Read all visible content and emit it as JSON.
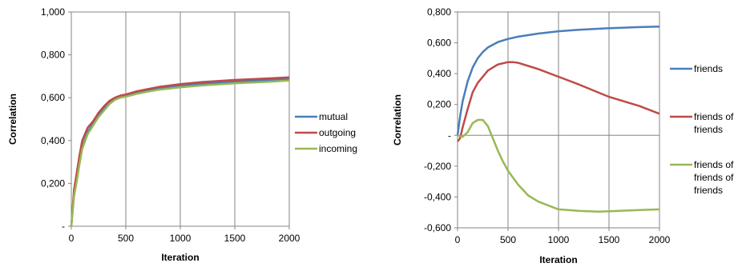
{
  "chart_data": [
    {
      "type": "line",
      "title": "",
      "xlabel": "Iteration",
      "ylabel": "Correlation",
      "xlim": [
        0,
        2000
      ],
      "ylim": [
        0,
        1.0
      ],
      "x_ticks": [
        0,
        500,
        1000,
        1500,
        2000
      ],
      "x_tick_labels": [
        "0",
        "500",
        "1000",
        "1500",
        "2000"
      ],
      "y_ticks": [
        0,
        0.2,
        0.4,
        0.6,
        0.8,
        1.0
      ],
      "y_tick_labels": [
        "-",
        "0,200",
        "0,400",
        "0,600",
        "0,800",
        "1,000"
      ],
      "grid": "vertical",
      "legend": "right",
      "series": [
        {
          "name": "mutual",
          "color": "#4a7ebb",
          "x": [
            0,
            25,
            50,
            75,
            100,
            150,
            200,
            250,
            300,
            350,
            400,
            450,
            500,
            600,
            700,
            800,
            1000,
            1200,
            1500,
            1800,
            2000
          ],
          "y": [
            0.0,
            0.15,
            0.22,
            0.3,
            0.37,
            0.44,
            0.48,
            0.52,
            0.55,
            0.58,
            0.595,
            0.605,
            0.61,
            0.625,
            0.635,
            0.645,
            0.655,
            0.665,
            0.675,
            0.682,
            0.688
          ]
        },
        {
          "name": "outgoing",
          "color": "#be4b48",
          "x": [
            0,
            25,
            50,
            75,
            100,
            150,
            200,
            250,
            300,
            350,
            400,
            450,
            500,
            600,
            700,
            800,
            1000,
            1200,
            1500,
            1800,
            2000
          ],
          "y": [
            0.0,
            0.17,
            0.25,
            0.33,
            0.4,
            0.46,
            0.49,
            0.53,
            0.56,
            0.585,
            0.6,
            0.61,
            0.615,
            0.63,
            0.64,
            0.65,
            0.663,
            0.673,
            0.683,
            0.69,
            0.695
          ]
        },
        {
          "name": "incoming",
          "color": "#98b954",
          "x": [
            0,
            25,
            50,
            75,
            100,
            150,
            200,
            250,
            300,
            350,
            400,
            450,
            500,
            600,
            700,
            800,
            1000,
            1200,
            1500,
            1800,
            2000
          ],
          "y": [
            0.0,
            0.14,
            0.21,
            0.29,
            0.36,
            0.43,
            0.47,
            0.51,
            0.54,
            0.57,
            0.59,
            0.6,
            0.605,
            0.618,
            0.628,
            0.637,
            0.648,
            0.657,
            0.667,
            0.674,
            0.68
          ]
        }
      ]
    },
    {
      "type": "line",
      "title": "",
      "xlabel": "Iteration",
      "ylabel": "Correlation",
      "xlim": [
        0,
        2000
      ],
      "ylim": [
        -0.6,
        0.8
      ],
      "x_ticks": [
        0,
        500,
        1000,
        1500,
        2000
      ],
      "x_tick_labels": [
        "0",
        "500",
        "1000",
        "1500",
        "2000"
      ],
      "y_ticks": [
        -0.6,
        -0.4,
        -0.2,
        0,
        0.2,
        0.4,
        0.6,
        0.8
      ],
      "y_tick_labels": [
        "-0,600",
        "-0,400",
        "-0,200",
        "-",
        "0,200",
        "0,400",
        "0,600",
        "0,800"
      ],
      "grid": "vertical",
      "legend": "right",
      "series": [
        {
          "name": "friends",
          "color": "#4a7ebb",
          "x": [
            0,
            25,
            50,
            100,
            150,
            200,
            250,
            300,
            400,
            500,
            600,
            800,
            1000,
            1200,
            1500,
            1800,
            2000
          ],
          "y": [
            0.0,
            0.12,
            0.22,
            0.35,
            0.44,
            0.5,
            0.54,
            0.57,
            0.605,
            0.625,
            0.64,
            0.66,
            0.675,
            0.685,
            0.695,
            0.702,
            0.705
          ]
        },
        {
          "name": "friends of\nfriends",
          "color": "#be4b48",
          "x": [
            0,
            25,
            50,
            100,
            150,
            200,
            300,
            400,
            500,
            550,
            600,
            700,
            800,
            1000,
            1200,
            1500,
            1800,
            2000
          ],
          "y": [
            -0.04,
            -0.02,
            0.05,
            0.17,
            0.28,
            0.34,
            0.42,
            0.46,
            0.475,
            0.475,
            0.47,
            0.45,
            0.43,
            0.38,
            0.33,
            0.25,
            0.19,
            0.14
          ]
        },
        {
          "name": "friends of\nfriends of\nfriends",
          "color": "#98b954",
          "x": [
            0,
            50,
            100,
            150,
            200,
            250,
            300,
            350,
            400,
            450,
            500,
            600,
            700,
            800,
            1000,
            1200,
            1400,
            1600,
            1800,
            2000
          ],
          "y": [
            0.0,
            -0.01,
            0.02,
            0.08,
            0.1,
            0.1,
            0.06,
            -0.02,
            -0.1,
            -0.17,
            -0.23,
            -0.32,
            -0.39,
            -0.43,
            -0.48,
            -0.49,
            -0.495,
            -0.49,
            -0.485,
            -0.48
          ]
        }
      ]
    }
  ]
}
